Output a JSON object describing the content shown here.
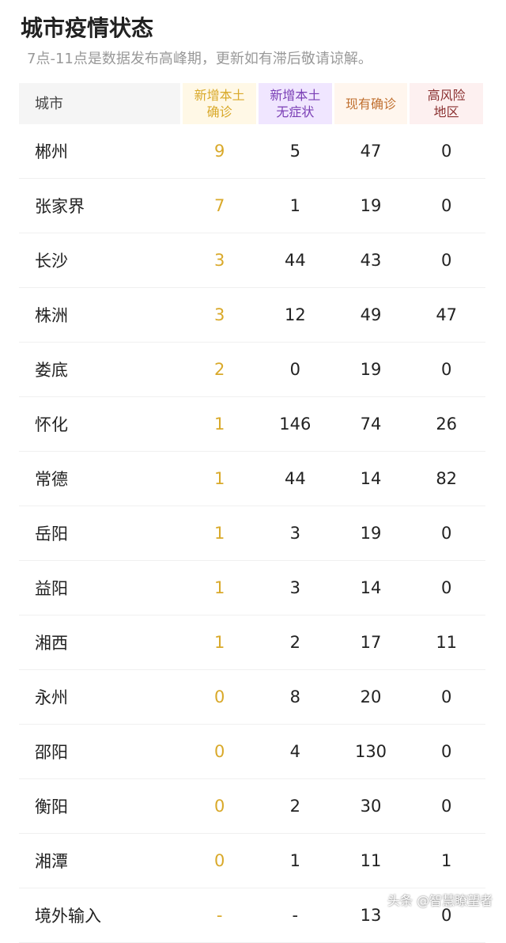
{
  "title": "城市疫情状态",
  "subtitle": "7点-11点是数据发布高峰期，更新如有滞后敬请谅解。",
  "headers": [
    "城市",
    "新增本土\n确诊",
    "新增本土\n无症状",
    "现有确诊",
    "高风险\n地区"
  ],
  "header_colors": {
    "bg": [
      "#f5f5f5",
      "#fff8e6",
      "#f0e6ff",
      "#fff6ee",
      "#fdf0f0"
    ],
    "fg": [
      "#444444",
      "#d9a92a",
      "#7a3fb5",
      "#c07030",
      "#8a3030"
    ]
  },
  "rows": [
    [
      "郴州",
      "9",
      "5",
      "47",
      "0"
    ],
    [
      "张家界",
      "7",
      "1",
      "19",
      "0"
    ],
    [
      "长沙",
      "3",
      "44",
      "43",
      "0"
    ],
    [
      "株洲",
      "3",
      "12",
      "49",
      "47"
    ],
    [
      "娄底",
      "2",
      "0",
      "19",
      "0"
    ],
    [
      "怀化",
      "1",
      "146",
      "74",
      "26"
    ],
    [
      "常德",
      "1",
      "44",
      "14",
      "82"
    ],
    [
      "岳阳",
      "1",
      "3",
      "19",
      "0"
    ],
    [
      "益阳",
      "1",
      "3",
      "14",
      "0"
    ],
    [
      "湘西",
      "1",
      "2",
      "17",
      "11"
    ],
    [
      "永州",
      "0",
      "8",
      "20",
      "0"
    ],
    [
      "邵阳",
      "0",
      "4",
      "130",
      "0"
    ],
    [
      "衡阳",
      "0",
      "2",
      "30",
      "0"
    ],
    [
      "湘潭",
      "0",
      "1",
      "11",
      "1"
    ],
    [
      "境外输入",
      "-",
      "-",
      "13",
      "0"
    ]
  ],
  "watermark": "头条 @智慧瞭望者"
}
